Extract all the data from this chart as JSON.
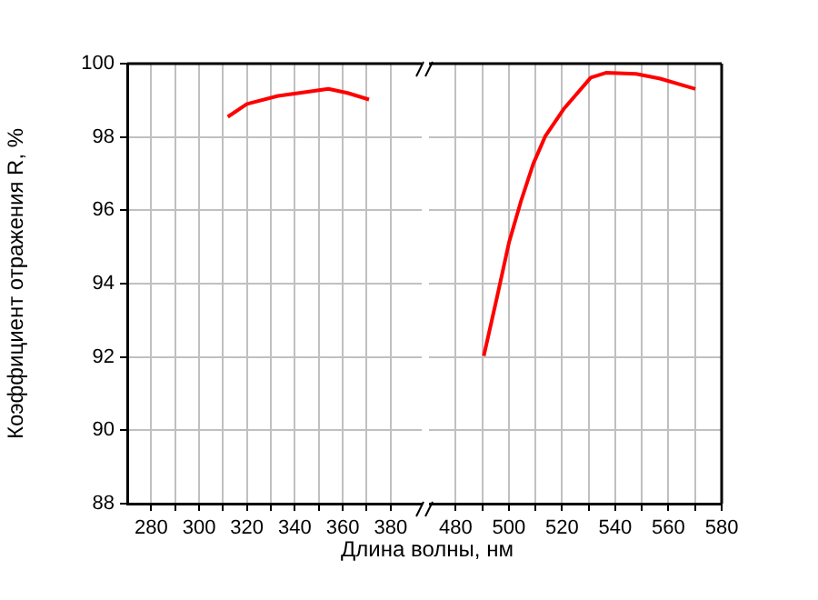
{
  "chart_data": [
    {
      "type": "line",
      "ylabel": "Коэффициент отражения R, %",
      "xlim": [
        270,
        393
      ],
      "xticks": [
        280,
        {
          "value": 290,
          "label": null
        },
        300,
        {
          "value": 310,
          "label": null
        },
        320,
        {
          "value": 330,
          "label": null
        },
        340,
        {
          "value": 350,
          "label": null
        },
        360,
        {
          "value": 370,
          "label": null
        },
        380
      ],
      "ylim": [
        88,
        100
      ],
      "yticks": [
        88,
        90,
        92,
        94,
        96,
        98,
        100
      ],
      "grid": true,
      "legend": false,
      "marker": "none",
      "line_style": "solid",
      "series": [
        {
          "color": "#ff0000",
          "x": [
            312,
            320,
            333,
            344,
            354,
            362,
            371
          ],
          "values": [
            98.55,
            98.9,
            99.12,
            99.22,
            99.31,
            99.2,
            99.02
          ]
        }
      ]
    },
    {
      "type": "line",
      "xlabel": "Длина волны, нм",
      "xlim": [
        470,
        580
      ],
      "xticks": [
        480,
        {
          "value": 490,
          "label": null
        },
        500,
        {
          "value": 510,
          "label": null
        },
        520,
        {
          "value": 530,
          "label": null
        },
        540,
        {
          "value": 550,
          "label": null
        },
        560,
        {
          "value": 570,
          "label": null
        },
        580
      ],
      "ylim": [
        88,
        100
      ],
      "yticks": [
        88,
        90,
        92,
        94,
        96,
        98,
        100
      ],
      "tick_labels": "x",
      "grid": true,
      "legend": false,
      "marker": "none",
      "line_style": "solid",
      "series": [
        {
          "color": "#ff0000",
          "x": [
            490.6,
            495.6,
            500.1,
            504.7,
            509.2,
            513.7,
            520.6,
            530.8,
            536.5,
            547.8,
            556.9,
            570.1
          ],
          "values": [
            92.03,
            93.64,
            95.13,
            96.28,
            97.27,
            98.02,
            98.76,
            99.62,
            99.75,
            99.72,
            99.59,
            99.31
          ]
        }
      ]
    }
  ]
}
